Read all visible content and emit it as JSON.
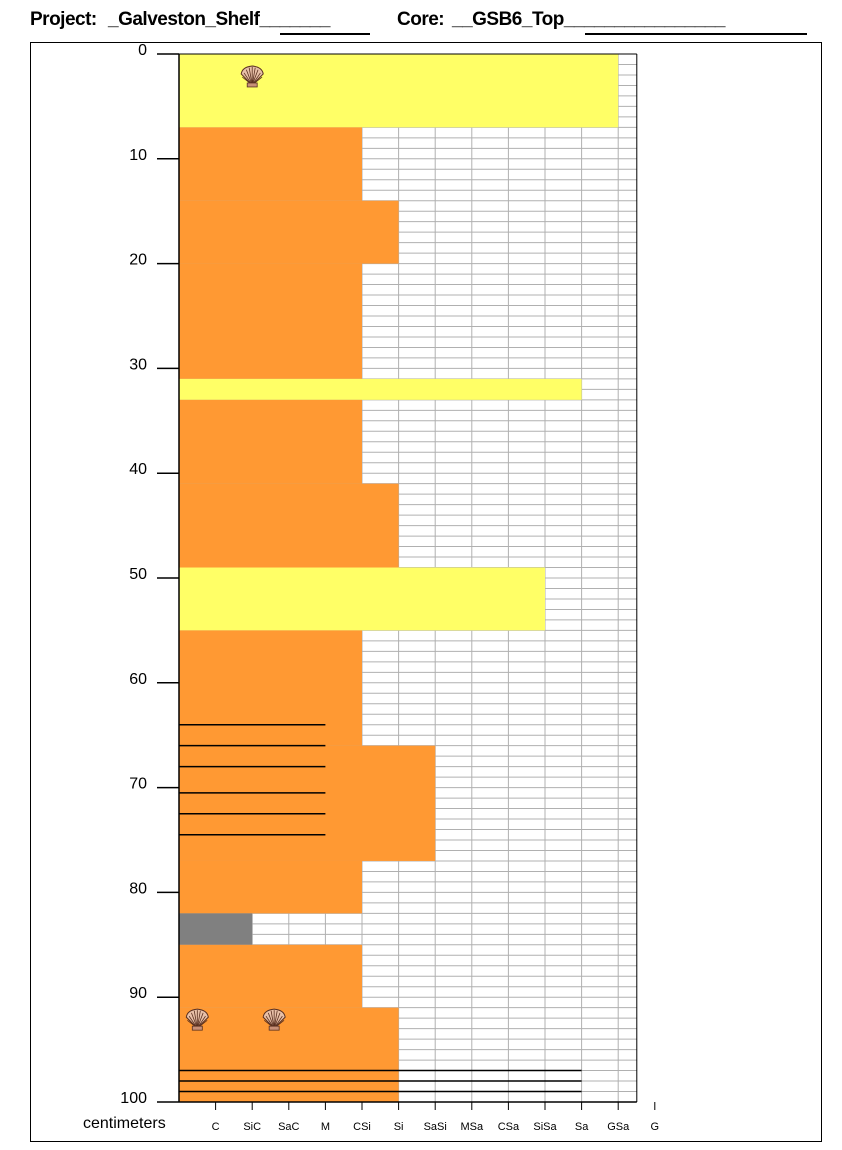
{
  "header": {
    "project_label": "Project:",
    "project_name": "_Galveston_Shelf_______",
    "core_label": "Core:",
    "core_name": "__GSB6_Top________________"
  },
  "chart_data": {
    "type": "core_log",
    "y_axis": {
      "units_label": "centimeters",
      "range": [
        0,
        100
      ],
      "ticks": [
        "0",
        "10",
        "20",
        "30",
        "40",
        "50",
        "60",
        "70",
        "80",
        "90",
        "100"
      ]
    },
    "grain_sizes": [
      "C",
      "SiC",
      "SaC",
      "M",
      "CSi",
      "Si",
      "SaSi",
      "MSa",
      "CSa",
      "SiSa",
      "Sa",
      "GSa",
      "G"
    ],
    "colors": {
      "mud": "#FF9933",
      "sand": "#FFFF66",
      "gap": "#808080",
      "grid": "#b0b0b0"
    },
    "layers": [
      {
        "top": 0,
        "bottom": 7,
        "grain": 12,
        "lithology": "sand"
      },
      {
        "top": 7,
        "bottom": 14,
        "grain": 5,
        "lithology": "mud"
      },
      {
        "top": 14,
        "bottom": 20,
        "grain": 6,
        "lithology": "mud"
      },
      {
        "top": 20,
        "bottom": 31,
        "grain": 5,
        "lithology": "mud"
      },
      {
        "top": 31,
        "bottom": 33,
        "grain": 11,
        "lithology": "sand"
      },
      {
        "top": 33,
        "bottom": 41,
        "grain": 5,
        "lithology": "mud"
      },
      {
        "top": 41,
        "bottom": 49,
        "grain": 6,
        "lithology": "mud"
      },
      {
        "top": 49,
        "bottom": 55,
        "grain": 10,
        "lithology": "sand"
      },
      {
        "top": 55,
        "bottom": 66,
        "grain": 5,
        "lithology": "mud"
      },
      {
        "top": 66,
        "bottom": 77,
        "grain": 7,
        "lithology": "mud"
      },
      {
        "top": 77,
        "bottom": 82,
        "grain": 5,
        "lithology": "mud"
      },
      {
        "top": 82,
        "bottom": 85,
        "grain": 2,
        "lithology": "gap"
      },
      {
        "top": 85,
        "bottom": 91,
        "grain": 5,
        "lithology": "mud"
      },
      {
        "top": 91,
        "bottom": 100,
        "grain": 6,
        "lithology": "mud"
      }
    ],
    "laminations": [
      {
        "depth": 64,
        "to_grain": 4
      },
      {
        "depth": 66,
        "to_grain": 4
      },
      {
        "depth": 68,
        "to_grain": 4
      },
      {
        "depth": 70.5,
        "to_grain": 4
      },
      {
        "depth": 72.5,
        "to_grain": 4
      },
      {
        "depth": 74.5,
        "to_grain": 4
      },
      {
        "depth": 97,
        "to_grain": 11
      },
      {
        "depth": 98,
        "to_grain": 11
      },
      {
        "depth": 99,
        "to_grain": 11
      }
    ],
    "shells": [
      {
        "depth": 2,
        "grain": 2
      },
      {
        "depth": 92,
        "grain": 0.5
      },
      {
        "depth": 92,
        "grain": 2.6
      }
    ],
    "shell_icon": "scallop-shell-icon"
  }
}
